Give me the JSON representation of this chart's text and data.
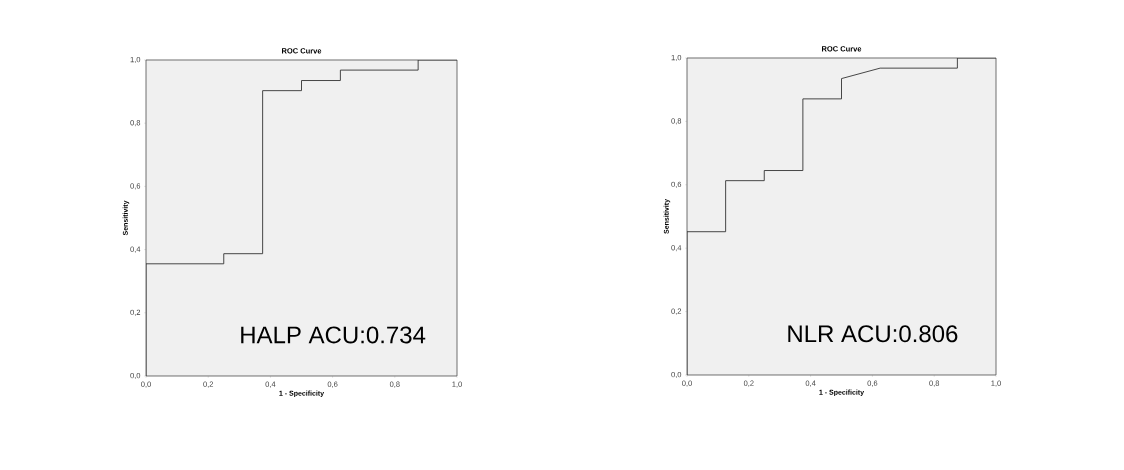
{
  "chart_data": [
    {
      "type": "line",
      "title": "ROC Curve",
      "xlabel": "1 - Specificity",
      "ylabel": "Sensitivity",
      "annotations": [
        "HALP ACU:0.734"
      ],
      "xlim": [
        0,
        1
      ],
      "ylim": [
        0,
        1
      ],
      "xticks": [
        {
          "value": 0,
          "label": "0,0"
        },
        {
          "value": 0.2,
          "label": "0,2"
        },
        {
          "value": 0.4,
          "label": "0,4"
        },
        {
          "value": 0.6,
          "label": "0,6"
        },
        {
          "value": 0.8,
          "label": "0,8"
        },
        {
          "value": 1,
          "label": "1,0"
        }
      ],
      "yticks": [
        {
          "value": 0,
          "label": "0,0"
        },
        {
          "value": 0.2,
          "label": "0,2"
        },
        {
          "value": 0.4,
          "label": "0,4"
        },
        {
          "value": 0.6,
          "label": "0,6"
        },
        {
          "value": 0.8,
          "label": "0,8"
        },
        {
          "value": 1,
          "label": "1,0"
        }
      ],
      "grid": false,
      "marker": "none",
      "line_style": "solid",
      "series": [
        {
          "color": "#333333",
          "x": [
            0,
            0,
            0.25,
            0.25,
            0.375,
            0.375,
            0.5,
            0.5,
            0.625,
            0.625,
            0.875,
            0.875,
            1
          ],
          "values": [
            0,
            0.355,
            0.355,
            0.387,
            0.387,
            0.903,
            0.903,
            0.935,
            0.935,
            0.968,
            0.968,
            1,
            1
          ]
        }
      ]
    },
    {
      "type": "line",
      "title": "ROC Curve",
      "xlabel": "1 - Specificity",
      "ylabel": "Sensitivity",
      "annotations": [
        "NLR ACU:0.806"
      ],
      "xlim": [
        0,
        1
      ],
      "ylim": [
        0,
        1
      ],
      "xticks": [
        {
          "value": 0,
          "label": "0,0"
        },
        {
          "value": 0.2,
          "label": "0,2"
        },
        {
          "value": 0.4,
          "label": "0,4"
        },
        {
          "value": 0.6,
          "label": "0,6"
        },
        {
          "value": 0.8,
          "label": "0,8"
        },
        {
          "value": 1,
          "label": "1,0"
        }
      ],
      "yticks": [
        {
          "value": 0,
          "label": "0,0"
        },
        {
          "value": 0.2,
          "label": "0,2"
        },
        {
          "value": 0.4,
          "label": "0,4"
        },
        {
          "value": 0.6,
          "label": "0,6"
        },
        {
          "value": 0.8,
          "label": "0,8"
        },
        {
          "value": 1,
          "label": "1,0"
        }
      ],
      "grid": false,
      "marker": "none",
      "line_style": "solid",
      "series": [
        {
          "color": "#333333",
          "x": [
            0,
            0,
            0.125,
            0.125,
            0.25,
            0.25,
            0.375,
            0.375,
            0.5,
            0.5,
            0.625,
            0.875,
            0.875,
            1
          ],
          "values": [
            0,
            0.452,
            0.452,
            0.613,
            0.613,
            0.645,
            0.645,
            0.871,
            0.871,
            0.935,
            0.968,
            0.968,
            1,
            1
          ]
        }
      ]
    }
  ]
}
